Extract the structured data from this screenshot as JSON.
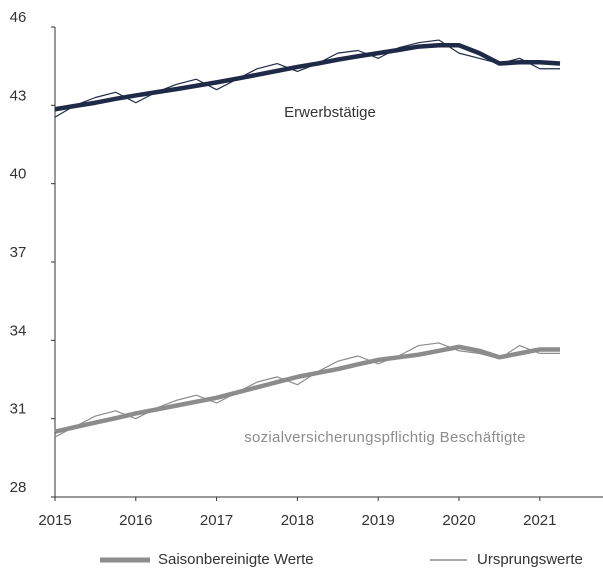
{
  "chart_data": {
    "type": "line",
    "x": [
      2015,
      2015.25,
      2015.5,
      2015.75,
      2016,
      2016.25,
      2016.5,
      2016.75,
      2017,
      2017.25,
      2017.5,
      2017.75,
      2018,
      2018.25,
      2018.5,
      2018.75,
      2019,
      2019.25,
      2019.5,
      2019.75,
      2020,
      2020.25,
      2020.5,
      2020.75,
      2021,
      2021.25
    ],
    "groups": [
      {
        "name": "Erwerbstätige",
        "color": "#1f2a48",
        "adjusted": [
          42.85,
          42.98,
          43.1,
          43.25,
          43.38,
          43.5,
          43.62,
          43.75,
          43.88,
          44.02,
          44.17,
          44.32,
          44.47,
          44.6,
          44.75,
          44.88,
          45.0,
          45.12,
          45.25,
          45.3,
          45.3,
          45.0,
          44.6,
          44.65,
          44.65,
          44.6
        ],
        "original": [
          42.55,
          43.0,
          43.3,
          43.5,
          43.1,
          43.5,
          43.8,
          44.0,
          43.6,
          44.0,
          44.4,
          44.6,
          44.3,
          44.6,
          45.0,
          45.1,
          44.8,
          45.2,
          45.4,
          45.5,
          45.0,
          44.8,
          44.6,
          44.8,
          44.4,
          44.4
        ]
      },
      {
        "name": "sozialversicherungspflichtig Beschäftigte",
        "color": "#8c8c8c",
        "adjusted": [
          30.5,
          30.68,
          30.85,
          31.02,
          31.2,
          31.35,
          31.5,
          31.65,
          31.8,
          32.0,
          32.2,
          32.4,
          32.6,
          32.75,
          32.9,
          33.08,
          33.25,
          33.35,
          33.45,
          33.6,
          33.75,
          33.6,
          33.35,
          33.5,
          33.65,
          33.65
        ],
        "original": [
          30.3,
          30.7,
          31.1,
          31.3,
          31.0,
          31.4,
          31.7,
          31.9,
          31.6,
          32.0,
          32.4,
          32.6,
          32.3,
          32.8,
          33.2,
          33.4,
          33.1,
          33.4,
          33.8,
          33.9,
          33.6,
          33.5,
          33.3,
          33.8,
          33.5,
          33.5
        ]
      }
    ],
    "legend": {
      "adjusted": "Saisonbereinigte Werte",
      "original": "Ursprungswerte"
    },
    "xlim": [
      2015,
      2021.8
    ],
    "xticks": [
      2015,
      2016,
      2017,
      2018,
      2019,
      2020,
      2021
    ],
    "ylim": [
      28,
      46
    ],
    "yticks": [
      28,
      31,
      34,
      37,
      40,
      43,
      46
    ]
  }
}
